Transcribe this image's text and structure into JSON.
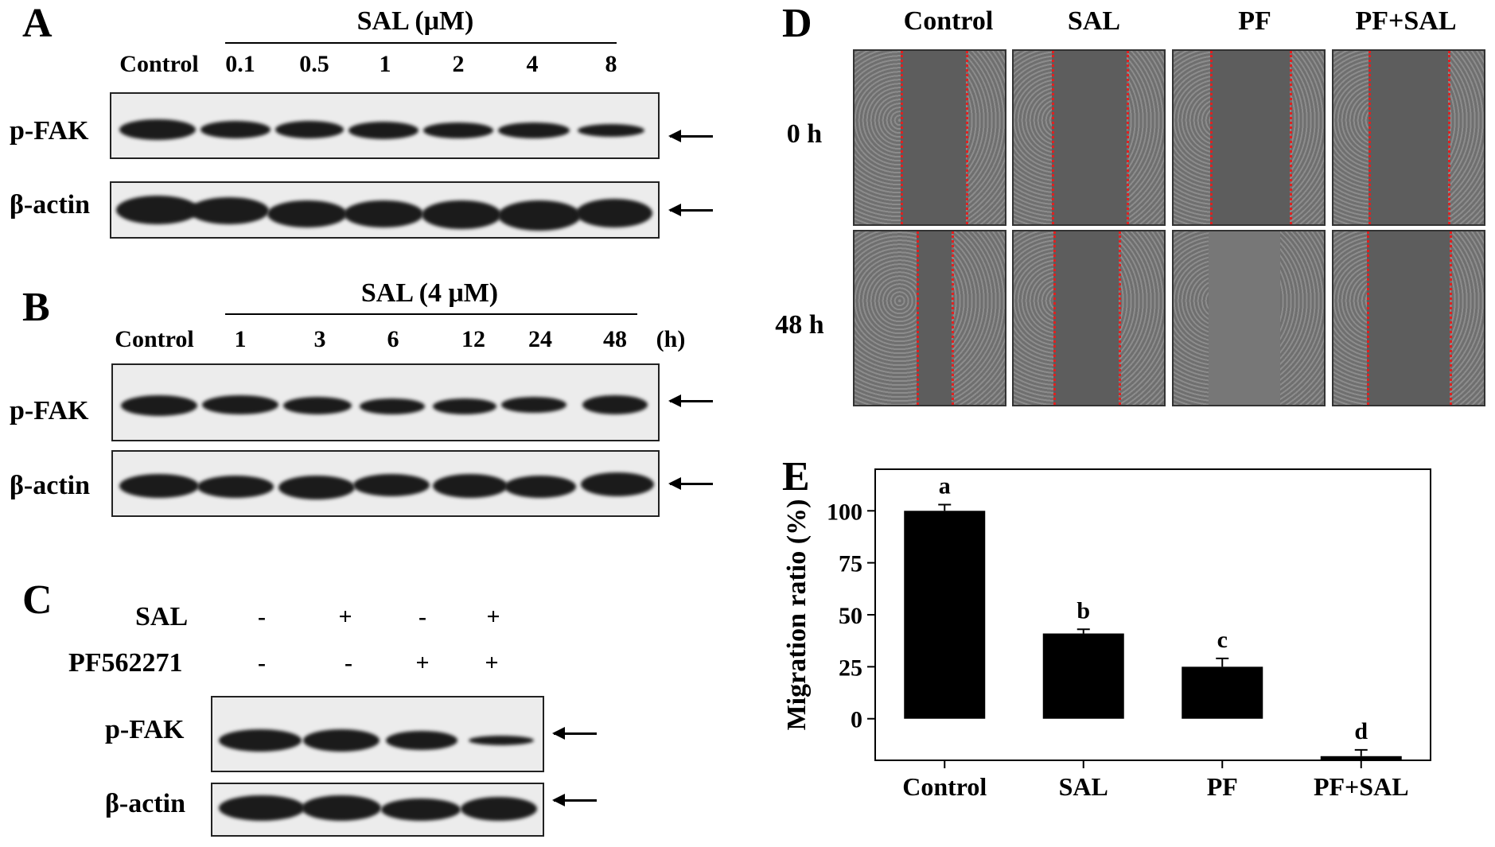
{
  "panelA": {
    "letter": "A",
    "header": "SAL (μM)",
    "control_label": "Control",
    "lanes": [
      "0.1",
      "0.5",
      "1",
      "2",
      "4",
      "8"
    ],
    "rows": [
      "p-FAK",
      "β-actin"
    ]
  },
  "panelB": {
    "letter": "B",
    "header": "SAL (4 μM)",
    "control_label": "Control",
    "lanes": [
      "1",
      "3",
      "6",
      "12",
      "24",
      "48"
    ],
    "unit": "(h)",
    "rows": [
      "p-FAK",
      "β-actin"
    ]
  },
  "panelC": {
    "letter": "C",
    "treatments": [
      {
        "name": "SAL",
        "signs": [
          "-",
          "+",
          "-",
          "+"
        ]
      },
      {
        "name": "PF562271",
        "signs": [
          "-",
          "-",
          "+",
          "+"
        ]
      }
    ],
    "rows": [
      "p-FAK",
      "β-actin"
    ]
  },
  "panelD": {
    "letter": "D",
    "columns": [
      "Control",
      "SAL",
      "PF",
      "PF+SAL"
    ],
    "rows": [
      "0 h",
      "48 h"
    ]
  },
  "panelE": {
    "letter": "E",
    "chart_data": {
      "type": "bar",
      "categories": [
        "Control",
        "SAL",
        "PF",
        "PF+SAL"
      ],
      "values": [
        100,
        41,
        25,
        -18
      ],
      "errors": [
        3,
        2,
        4,
        3
      ],
      "significance": [
        "a",
        "b",
        "c",
        "d"
      ],
      "ylabel": "Migration ratio (%)",
      "yticks": [
        "0",
        "25",
        "50",
        "75",
        "100"
      ],
      "ylim": [
        -20,
        120
      ],
      "bar_color": "#000000"
    }
  }
}
